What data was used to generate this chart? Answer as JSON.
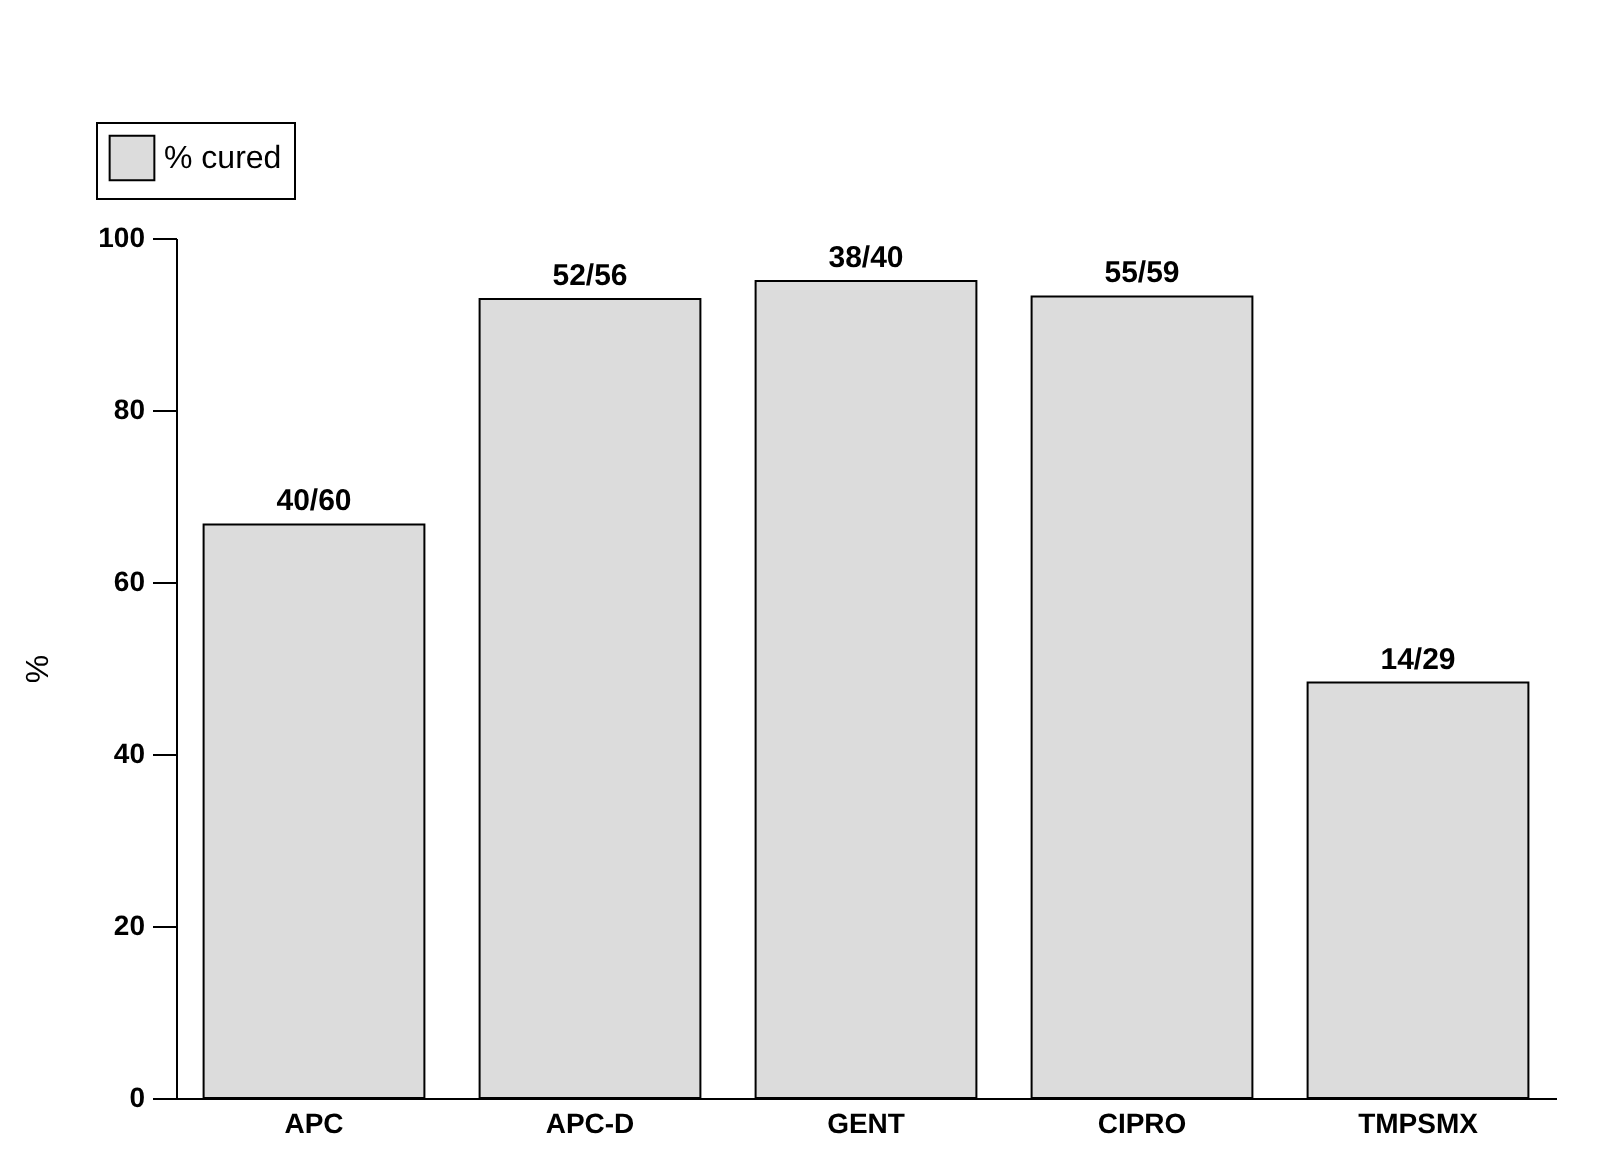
{
  "chart_data": {
    "type": "bar",
    "ylabel": "%",
    "categories": [
      "APC",
      "APC-D",
      "GENT",
      "CIPRO",
      "TMPSMX"
    ],
    "series": [
      {
        "name": "% cured",
        "color": "#dcdcdc",
        "values": [
          66.7,
          92.9,
          95,
          93.2,
          48.3
        ],
        "value_labels": [
          "40/60",
          "52/56",
          "38/40",
          "55/59",
          "14/29"
        ]
      }
    ],
    "ylim": [
      0,
      100
    ],
    "yticks": [
      0,
      20,
      40,
      60,
      80,
      100
    ],
    "grid": false,
    "legend": "top left"
  }
}
